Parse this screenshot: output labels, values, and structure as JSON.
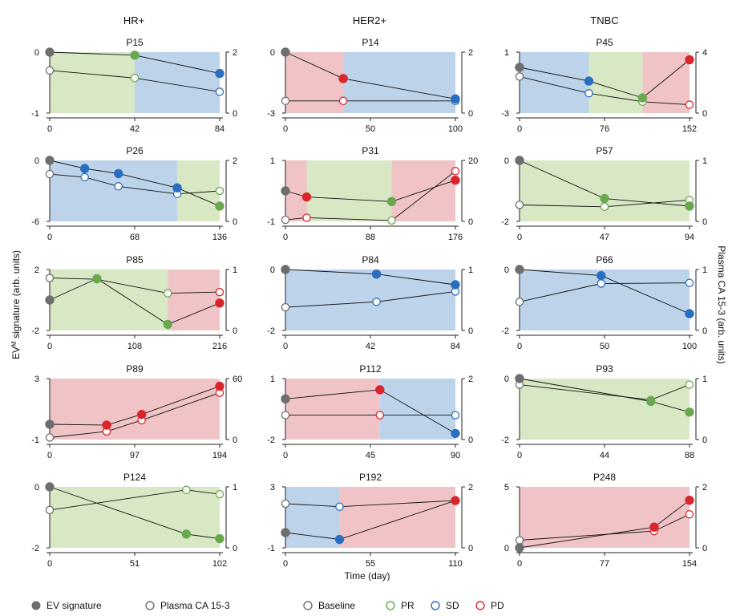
{
  "figure": {
    "column_headers": [
      "HR+",
      "HER2+",
      "TNBC"
    ],
    "xlabel": "Time (day)",
    "ylabel_left": "EV^M signature (arb. units)",
    "ylabel_left_base": "EV",
    "ylabel_left_sup": "M",
    "ylabel_left_rest": " signature (arb. units)",
    "ylabel_right": "Plasma CA 15-3 (arb. units)"
  },
  "legend": [
    {
      "label": "EV signature",
      "style": "filled",
      "color": "#6e6e6e"
    },
    {
      "label": "Plasma CA 15-3",
      "style": "open",
      "color": "#6e6e6e"
    },
    {
      "label": "Baseline",
      "style": "open",
      "color": "#6e6e6e"
    },
    {
      "label": "PR",
      "style": "open",
      "color": "#6aa84f"
    },
    {
      "label": "SD",
      "style": "open",
      "color": "#2a6fbf"
    },
    {
      "label": "PD",
      "style": "open",
      "color": "#d9262c"
    }
  ],
  "colors": {
    "baseline": "#6e6e6e",
    "PR": "#6aa84f",
    "SD": "#2a6fbf",
    "PD": "#d9262c",
    "bg_PR": "#d8e7c4",
    "bg_SD": "#bcd3ea",
    "bg_PD": "#f0c4c6"
  },
  "chart_data": [
    {
      "type": "line",
      "title": "P15",
      "column": "HR+",
      "xlim": [
        0,
        84
      ],
      "xticks": [
        0,
        42,
        84
      ],
      "ylim_left": [
        -1,
        0
      ],
      "yticks_left": [
        -1,
        0
      ],
      "ylim_right": [
        0,
        2
      ],
      "yticks_right": [
        0,
        2
      ],
      "phases": [
        {
          "status": "PR",
          "x0": 0,
          "x1": 42
        },
        {
          "status": "SD",
          "x0": 42,
          "x1": 84
        }
      ],
      "ev": [
        {
          "x": 0,
          "y": 0,
          "s": "baseline"
        },
        {
          "x": 42,
          "y": -0.05,
          "s": "PR"
        },
        {
          "x": 84,
          "y": -0.35,
          "s": "SD"
        }
      ],
      "ca": [
        {
          "x": 0,
          "y": 1.4,
          "s": "baseline"
        },
        {
          "x": 42,
          "y": 1.15,
          "s": "PR"
        },
        {
          "x": 84,
          "y": 0.7,
          "s": "SD"
        }
      ]
    },
    {
      "type": "line",
      "title": "P14",
      "column": "HER2+",
      "xlim": [
        0,
        100
      ],
      "xticks": [
        0,
        50,
        100
      ],
      "ylim_left": [
        -3,
        0
      ],
      "yticks_left": [
        -3,
        0
      ],
      "ylim_right": [
        0,
        2
      ],
      "yticks_right": [
        0,
        2
      ],
      "phases": [
        {
          "status": "PD",
          "x0": 0,
          "x1": 34
        },
        {
          "status": "SD",
          "x0": 34,
          "x1": 100
        }
      ],
      "ev": [
        {
          "x": 0,
          "y": 0,
          "s": "baseline"
        },
        {
          "x": 34,
          "y": -1.3,
          "s": "PD"
        },
        {
          "x": 100,
          "y": -2.3,
          "s": "SD"
        }
      ],
      "ca": [
        {
          "x": 0,
          "y": 0.4,
          "s": "baseline"
        },
        {
          "x": 34,
          "y": 0.4,
          "s": "PD"
        },
        {
          "x": 100,
          "y": 0.4,
          "s": "SD"
        }
      ]
    },
    {
      "type": "line",
      "title": "P45",
      "column": "TNBC",
      "xlim": [
        0,
        152
      ],
      "xticks": [
        0,
        76,
        152
      ],
      "ylim_left": [
        -3,
        1
      ],
      "yticks_left": [
        -3,
        1
      ],
      "ylim_right": [
        0,
        4
      ],
      "yticks_right": [
        0,
        4
      ],
      "phases": [
        {
          "status": "SD",
          "x0": 0,
          "x1": 62
        },
        {
          "status": "PR",
          "x0": 62,
          "x1": 110
        },
        {
          "status": "PD",
          "x0": 110,
          "x1": 152
        }
      ],
      "ev": [
        {
          "x": 0,
          "y": 0,
          "s": "baseline"
        },
        {
          "x": 62,
          "y": -0.9,
          "s": "SD"
        },
        {
          "x": 110,
          "y": -2,
          "s": "PR"
        },
        {
          "x": 152,
          "y": 0.5,
          "s": "PD"
        }
      ],
      "ca": [
        {
          "x": 0,
          "y": 2.4,
          "s": "baseline"
        },
        {
          "x": 62,
          "y": 1.3,
          "s": "SD"
        },
        {
          "x": 110,
          "y": 0.75,
          "s": "PR"
        },
        {
          "x": 152,
          "y": 0.55,
          "s": "PD"
        }
      ]
    },
    {
      "type": "line",
      "title": "P26",
      "column": "HR+",
      "xlim": [
        0,
        136
      ],
      "xticks": [
        0,
        68,
        136
      ],
      "ylim_left": [
        -6,
        0
      ],
      "yticks_left": [
        -6,
        0
      ],
      "ylim_right": [
        0,
        2
      ],
      "yticks_right": [
        0,
        2
      ],
      "phases": [
        {
          "status": "SD",
          "x0": 0,
          "x1": 102
        },
        {
          "status": "PR",
          "x0": 102,
          "x1": 136
        }
      ],
      "ev": [
        {
          "x": 0,
          "y": 0,
          "s": "baseline"
        },
        {
          "x": 28,
          "y": -0.8,
          "s": "SD"
        },
        {
          "x": 55,
          "y": -1.3,
          "s": "SD"
        },
        {
          "x": 102,
          "y": -2.7,
          "s": "SD"
        },
        {
          "x": 136,
          "y": -4.5,
          "s": "PR"
        }
      ],
      "ca": [
        {
          "x": 0,
          "y": 1.55,
          "s": "baseline"
        },
        {
          "x": 28,
          "y": 1.45,
          "s": "SD"
        },
        {
          "x": 55,
          "y": 1.15,
          "s": "SD"
        },
        {
          "x": 102,
          "y": 0.9,
          "s": "SD"
        },
        {
          "x": 136,
          "y": 1.0,
          "s": "PR"
        }
      ]
    },
    {
      "type": "line",
      "title": "P31",
      "column": "HER2+",
      "xlim": [
        0,
        176
      ],
      "xticks": [
        0,
        88,
        176
      ],
      "ylim_left": [
        -1,
        1
      ],
      "yticks_left": [
        -1,
        1
      ],
      "ylim_right": [
        0,
        20
      ],
      "yticks_right": [
        0,
        20
      ],
      "phases": [
        {
          "status": "PD",
          "x0": 0,
          "x1": 22
        },
        {
          "status": "PR",
          "x0": 22,
          "x1": 110
        },
        {
          "status": "PD",
          "x0": 110,
          "x1": 176
        }
      ],
      "ev": [
        {
          "x": 0,
          "y": 0,
          "s": "baseline"
        },
        {
          "x": 22,
          "y": -0.2,
          "s": "PD"
        },
        {
          "x": 110,
          "y": -0.35,
          "s": "PR"
        },
        {
          "x": 176,
          "y": 0.35,
          "s": "PD"
        }
      ],
      "ca": [
        {
          "x": 0,
          "y": 0.5,
          "s": "baseline"
        },
        {
          "x": 22,
          "y": 1.2,
          "s": "PD"
        },
        {
          "x": 110,
          "y": 0.3,
          "s": "PR"
        },
        {
          "x": 176,
          "y": 16.5,
          "s": "PD"
        }
      ]
    },
    {
      "type": "line",
      "title": "P57",
      "column": "TNBC",
      "xlim": [
        0,
        94
      ],
      "xticks": [
        0,
        47,
        94
      ],
      "ylim_left": [
        -2,
        0
      ],
      "yticks_left": [
        -2,
        0
      ],
      "ylim_right": [
        0,
        1
      ],
      "yticks_right": [
        0,
        1
      ],
      "phases": [
        {
          "status": "PR",
          "x0": 0,
          "x1": 94
        }
      ],
      "ev": [
        {
          "x": 0,
          "y": 0,
          "s": "baseline"
        },
        {
          "x": 47,
          "y": -1.25,
          "s": "PR"
        },
        {
          "x": 94,
          "y": -1.5,
          "s": "PR"
        }
      ],
      "ca": [
        {
          "x": 0,
          "y": 0.27,
          "s": "baseline"
        },
        {
          "x": 47,
          "y": 0.24,
          "s": "PR"
        },
        {
          "x": 94,
          "y": 0.35,
          "s": "PR"
        }
      ]
    },
    {
      "type": "line",
      "title": "P85",
      "column": "HR+",
      "xlim": [
        0,
        216
      ],
      "xticks": [
        0,
        108,
        216
      ],
      "ylim_left": [
        -2,
        2
      ],
      "yticks_left": [
        -2,
        2
      ],
      "ylim_right": [
        0,
        1
      ],
      "yticks_right": [
        0,
        1
      ],
      "phases": [
        {
          "status": "PR",
          "x0": 0,
          "x1": 150
        },
        {
          "status": "PD",
          "x0": 150,
          "x1": 216
        }
      ],
      "ev": [
        {
          "x": 0,
          "y": 0,
          "s": "baseline"
        },
        {
          "x": 60,
          "y": 1.4,
          "s": "PR"
        },
        {
          "x": 150,
          "y": -1.6,
          "s": "PR"
        },
        {
          "x": 216,
          "y": -0.2,
          "s": "PD"
        }
      ],
      "ca": [
        {
          "x": 0,
          "y": 0.86,
          "s": "baseline"
        },
        {
          "x": 60,
          "y": 0.84,
          "s": "PR"
        },
        {
          "x": 150,
          "y": 0.61,
          "s": "PR"
        },
        {
          "x": 216,
          "y": 0.63,
          "s": "PD"
        }
      ]
    },
    {
      "type": "line",
      "title": "P84",
      "column": "HER2+",
      "xlim": [
        0,
        84
      ],
      "xticks": [
        0,
        42,
        84
      ],
      "ylim_left": [
        -2,
        0
      ],
      "yticks_left": [
        -2,
        0
      ],
      "ylim_right": [
        0,
        1
      ],
      "yticks_right": [
        0,
        1
      ],
      "phases": [
        {
          "status": "SD",
          "x0": 0,
          "x1": 84
        }
      ],
      "ev": [
        {
          "x": 0,
          "y": 0,
          "s": "baseline"
        },
        {
          "x": 45,
          "y": -0.15,
          "s": "SD"
        },
        {
          "x": 84,
          "y": -0.5,
          "s": "SD"
        }
      ],
      "ca": [
        {
          "x": 0,
          "y": 0.38,
          "s": "baseline"
        },
        {
          "x": 45,
          "y": 0.47,
          "s": "SD"
        },
        {
          "x": 84,
          "y": 0.64,
          "s": "SD"
        }
      ]
    },
    {
      "type": "line",
      "title": "P66",
      "column": "TNBC",
      "xlim": [
        0,
        100
      ],
      "xticks": [
        0,
        50,
        100
      ],
      "ylim_left": [
        -2,
        0
      ],
      "yticks_left": [
        -2,
        0
      ],
      "ylim_right": [
        0,
        1
      ],
      "yticks_right": [
        0,
        1
      ],
      "phases": [
        {
          "status": "SD",
          "x0": 0,
          "x1": 100
        }
      ],
      "ev": [
        {
          "x": 0,
          "y": 0,
          "s": "baseline"
        },
        {
          "x": 48,
          "y": -0.2,
          "s": "SD"
        },
        {
          "x": 100,
          "y": -1.45,
          "s": "SD"
        }
      ],
      "ca": [
        {
          "x": 0,
          "y": 0.47,
          "s": "baseline"
        },
        {
          "x": 48,
          "y": 0.77,
          "s": "SD"
        },
        {
          "x": 100,
          "y": 0.78,
          "s": "SD"
        }
      ]
    },
    {
      "type": "line",
      "title": "P89",
      "column": "HR+",
      "xlim": [
        0,
        194
      ],
      "xticks": [
        0,
        97,
        194
      ],
      "ylim_left": [
        -1,
        3
      ],
      "yticks_left": [
        -1,
        3
      ],
      "ylim_right": [
        0,
        60
      ],
      "yticks_right": [
        0,
        60
      ],
      "phases": [
        {
          "status": "PD",
          "x0": 0,
          "x1": 194
        }
      ],
      "ev": [
        {
          "x": 0,
          "y": 0,
          "s": "baseline"
        },
        {
          "x": 65,
          "y": -0.05,
          "s": "PD"
        },
        {
          "x": 105,
          "y": 0.65,
          "s": "PD"
        },
        {
          "x": 194,
          "y": 2.5,
          "s": "PD"
        }
      ],
      "ca": [
        {
          "x": 0,
          "y": 2,
          "s": "baseline"
        },
        {
          "x": 65,
          "y": 8,
          "s": "PD"
        },
        {
          "x": 105,
          "y": 19,
          "s": "PD"
        },
        {
          "x": 194,
          "y": 46,
          "s": "PD"
        }
      ]
    },
    {
      "type": "line",
      "title": "P112",
      "column": "HER2+",
      "xlim": [
        0,
        90
      ],
      "xticks": [
        0,
        45,
        90
      ],
      "ylim_left": [
        -2,
        1
      ],
      "yticks_left": [
        -2,
        1
      ],
      "ylim_right": [
        0,
        2
      ],
      "yticks_right": [
        0,
        2
      ],
      "phases": [
        {
          "status": "PD",
          "x0": 0,
          "x1": 50
        },
        {
          "status": "SD",
          "x0": 50,
          "x1": 90
        }
      ],
      "ev": [
        {
          "x": 0,
          "y": 0,
          "s": "baseline"
        },
        {
          "x": 50,
          "y": 0.45,
          "s": "PD"
        },
        {
          "x": 90,
          "y": -1.7,
          "s": "SD"
        }
      ],
      "ca": [
        {
          "x": 0,
          "y": 0.8,
          "s": "baseline"
        },
        {
          "x": 50,
          "y": 0.8,
          "s": "PD"
        },
        {
          "x": 90,
          "y": 0.8,
          "s": "SD"
        }
      ]
    },
    {
      "type": "line",
      "title": "P93",
      "column": "TNBC",
      "xlim": [
        0,
        88
      ],
      "xticks": [
        0,
        44,
        88
      ],
      "ylim_left": [
        -2,
        0
      ],
      "yticks_left": [
        -2,
        0
      ],
      "ylim_right": [
        0,
        1
      ],
      "yticks_right": [
        0,
        1
      ],
      "phases": [
        {
          "status": "PR",
          "x0": 0,
          "x1": 88
        }
      ],
      "ev": [
        {
          "x": 0,
          "y": 0,
          "s": "baseline"
        },
        {
          "x": 68,
          "y": -0.75,
          "s": "PR"
        },
        {
          "x": 88,
          "y": -1.1,
          "s": "PR"
        }
      ],
      "ca": [
        {
          "x": 0,
          "y": 0.9,
          "s": "baseline"
        },
        {
          "x": 68,
          "y": 0.65,
          "s": "PR"
        },
        {
          "x": 88,
          "y": 0.9,
          "s": "PR"
        }
      ]
    },
    {
      "type": "line",
      "title": "P124",
      "column": "HR+",
      "xlim": [
        0,
        102
      ],
      "xticks": [
        0,
        51,
        102
      ],
      "ylim_left": [
        -2,
        0
      ],
      "yticks_left": [
        -2,
        0
      ],
      "ylim_right": [
        0,
        1
      ],
      "yticks_right": [
        0,
        1
      ],
      "phases": [
        {
          "status": "PR",
          "x0": 0,
          "x1": 102
        }
      ],
      "ev": [
        {
          "x": 0,
          "y": 0,
          "s": "baseline"
        },
        {
          "x": 82,
          "y": -1.55,
          "s": "PR"
        },
        {
          "x": 102,
          "y": -1.7,
          "s": "PR"
        }
      ],
      "ca": [
        {
          "x": 0,
          "y": 0.62,
          "s": "baseline"
        },
        {
          "x": 82,
          "y": 0.95,
          "s": "PR"
        },
        {
          "x": 102,
          "y": 0.88,
          "s": "PR"
        }
      ]
    },
    {
      "type": "line",
      "title": "P192",
      "column": "HER2+",
      "xlim": [
        0,
        110
      ],
      "xticks": [
        0,
        55,
        110
      ],
      "ylim_left": [
        -1,
        3
      ],
      "yticks_left": [
        -1,
        3
      ],
      "ylim_right": [
        0,
        2
      ],
      "yticks_right": [
        0,
        2
      ],
      "phases": [
        {
          "status": "SD",
          "x0": 0,
          "x1": 35
        },
        {
          "status": "PD",
          "x0": 35,
          "x1": 110
        }
      ],
      "ev": [
        {
          "x": 0,
          "y": 0,
          "s": "baseline"
        },
        {
          "x": 35,
          "y": -0.45,
          "s": "SD"
        },
        {
          "x": 110,
          "y": 2.1,
          "s": "PD"
        }
      ],
      "ca": [
        {
          "x": 0,
          "y": 1.45,
          "s": "baseline"
        },
        {
          "x": 35,
          "y": 1.35,
          "s": "SD"
        },
        {
          "x": 110,
          "y": 1.55,
          "s": "PD"
        }
      ]
    },
    {
      "type": "line",
      "title": "P248",
      "column": "TNBC",
      "xlim": [
        0,
        154
      ],
      "xticks": [
        0,
        77,
        154
      ],
      "ylim_left": [
        0,
        5
      ],
      "yticks_left": [
        0,
        5
      ],
      "ylim_right": [
        0,
        2
      ],
      "yticks_right": [
        0,
        2
      ],
      "phases": [
        {
          "status": "PD",
          "x0": 0,
          "x1": 154
        }
      ],
      "ev": [
        {
          "x": 0,
          "y": 0,
          "s": "baseline"
        },
        {
          "x": 122,
          "y": 1.7,
          "s": "PD"
        },
        {
          "x": 154,
          "y": 3.9,
          "s": "PD"
        }
      ],
      "ca": [
        {
          "x": 0,
          "y": 0.25,
          "s": "baseline"
        },
        {
          "x": 122,
          "y": 0.55,
          "s": "PD"
        },
        {
          "x": 154,
          "y": 1.1,
          "s": "PD"
        }
      ]
    }
  ]
}
